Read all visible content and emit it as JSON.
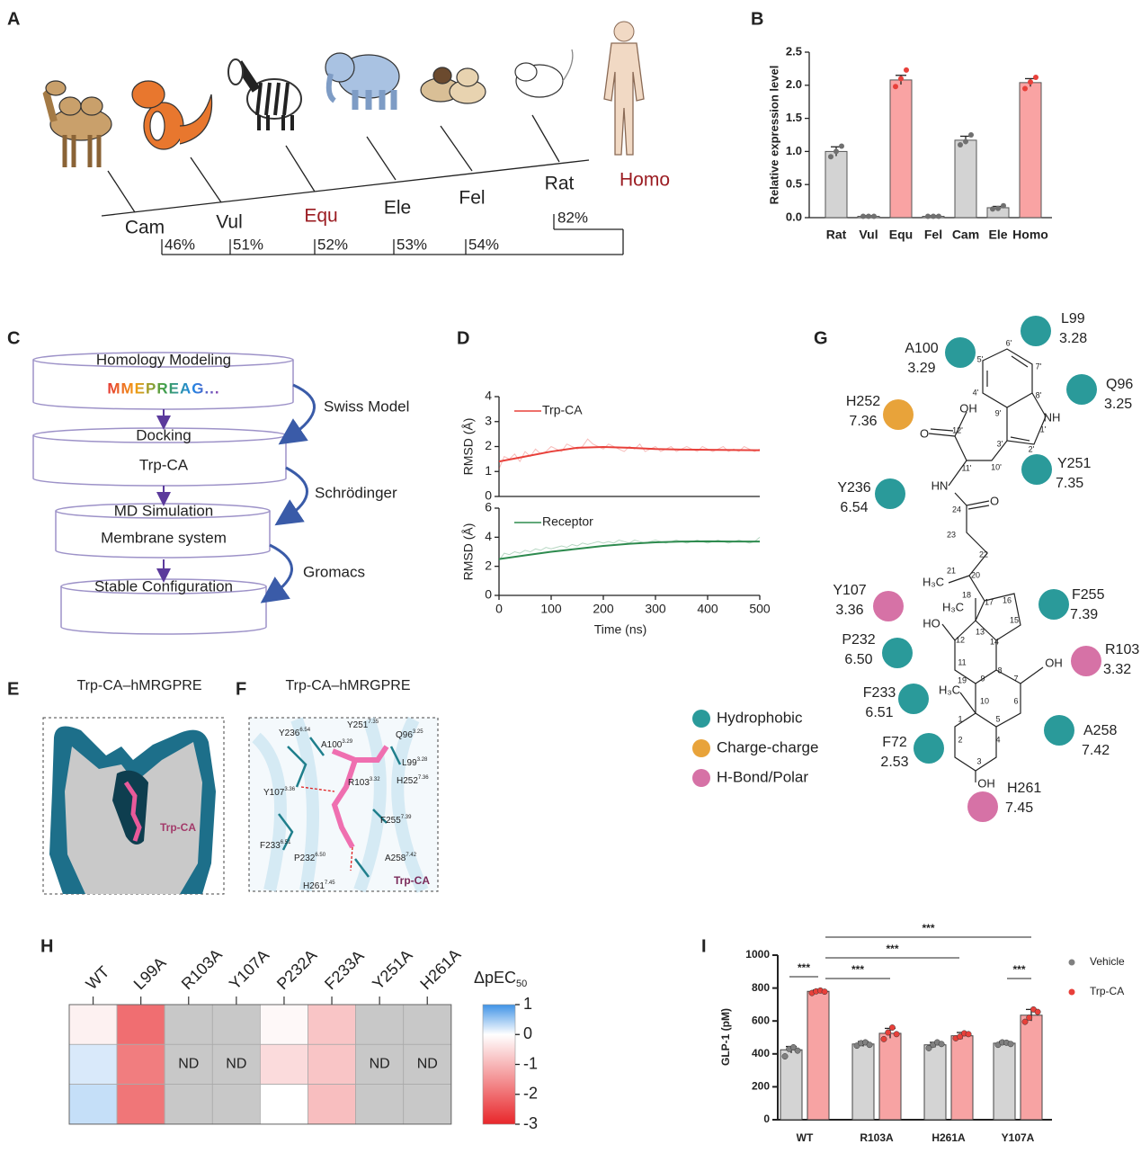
{
  "panel_labels": [
    "A",
    "B",
    "C",
    "D",
    "E",
    "F",
    "G",
    "H",
    "I"
  ],
  "phylogeny": {
    "species": [
      {
        "name": "Cam",
        "color": "#222222"
      },
      {
        "name": "Vul",
        "color": "#222222"
      },
      {
        "name": "Equ",
        "color": "#9b1c22"
      },
      {
        "name": "Ele",
        "color": "#222222"
      },
      {
        "name": "Fel",
        "color": "#222222"
      },
      {
        "name": "Rat",
        "color": "#222222"
      },
      {
        "name": "Homo",
        "color": "#9b1c22"
      }
    ],
    "identity": [
      "46%",
      "51%",
      "52%",
      "53%",
      "54%",
      "82%"
    ]
  },
  "workflow": {
    "steps": [
      {
        "title": "Homology Modeling",
        "detail": "MMEPREAG..."
      },
      {
        "title": "Docking",
        "detail": "Trp-CA"
      },
      {
        "title": "MD Simulation",
        "detail": "Membrane system"
      },
      {
        "title": "Stable Configuration"
      }
    ],
    "tools": [
      "Swiss Model",
      "Schrödinger",
      "Gromacs"
    ]
  },
  "structure_views": {
    "e_title": "Trp-CA–hMRGPRE",
    "e_ligand": "Trp-CA",
    "f_title": "Trp-CA–hMRGPRE",
    "f_ligand": "Trp-CA",
    "f_residues": [
      {
        "name": "Y236",
        "sup": "6.54"
      },
      {
        "name": "Y251",
        "sup": "7.35"
      },
      {
        "name": "A100",
        "sup": "3.29"
      },
      {
        "name": "Q96",
        "sup": "3.25"
      },
      {
        "name": "L99",
        "sup": "3.28"
      },
      {
        "name": "Y107",
        "sup": "3.36"
      },
      {
        "name": "R103",
        "sup": "3.32"
      },
      {
        "name": "H252",
        "sup": "7.36"
      },
      {
        "name": "F255",
        "sup": "7.39"
      },
      {
        "name": "F233",
        "sup": "6.51"
      },
      {
        "name": "P232",
        "sup": "6.50"
      },
      {
        "name": "A258",
        "sup": "7.42"
      },
      {
        "name": "H261",
        "sup": "7.45"
      }
    ]
  },
  "interaction_map": {
    "residues": [
      {
        "name": "L99",
        "number": "3.28",
        "color": "#2a9a9a"
      },
      {
        "name": "A100",
        "number": "3.29",
        "color": "#2a9a9a"
      },
      {
        "name": "Q96",
        "number": "3.25",
        "color": "#2a9a9a"
      },
      {
        "name": "H252",
        "number": "7.36",
        "color": "#e8a33a"
      },
      {
        "name": "Y251",
        "number": "7.35",
        "color": "#2a9a9a"
      },
      {
        "name": "Y236",
        "number": "6.54",
        "color": "#2a9a9a"
      },
      {
        "name": "Y107",
        "number": "3.36",
        "color": "#d672a6"
      },
      {
        "name": "F255",
        "number": "7.39",
        "color": "#2a9a9a"
      },
      {
        "name": "P232",
        "number": "6.50",
        "color": "#2a9a9a"
      },
      {
        "name": "R103",
        "number": "3.32",
        "color": "#d672a6"
      },
      {
        "name": "F233",
        "number": "6.51",
        "color": "#2a9a9a"
      },
      {
        "name": "A258",
        "number": "7.42",
        "color": "#2a9a9a"
      },
      {
        "name": "F72",
        "number": "2.53",
        "color": "#2a9a9a"
      },
      {
        "name": "H261",
        "number": "7.45",
        "color": "#d672a6"
      }
    ],
    "legend": [
      {
        "name": "Hydrophobic",
        "color": "#2a9a9a"
      },
      {
        "name": "Charge-charge",
        "color": "#e8a33a"
      },
      {
        "name": "H-Bond/Polar",
        "color": "#d672a6"
      }
    ],
    "atoms": [
      "OH",
      "NH",
      "O",
      "HN",
      "O",
      "H₃C",
      "H₃C",
      "HO",
      "OH",
      "H₃C",
      "OH"
    ],
    "locants": [
      "1'",
      "2'",
      "3'",
      "4'",
      "5'",
      "6'",
      "7'",
      "8'",
      "9'",
      "10'",
      "11'",
      "12'",
      "24",
      "23",
      "22",
      "21",
      "20",
      "18",
      "17",
      "16",
      "15",
      "13",
      "14",
      "12",
      "11",
      "8",
      "7",
      "9",
      "19",
      "10",
      "5",
      "6",
      "1",
      "2",
      "3",
      "4"
    ]
  },
  "chart_data": [
    {
      "type": "bar",
      "ylabel": "Relative expression level",
      "categories": [
        "Rat",
        "Vul",
        "Equ",
        "Fel",
        "Cam",
        "Ele",
        "Homo"
      ],
      "values": [
        1.0,
        0.02,
        2.08,
        0.02,
        1.17,
        0.15,
        2.04
      ],
      "errors": [
        0.07,
        0.01,
        0.07,
        0.01,
        0.06,
        0.02,
        0.06
      ],
      "points": [
        [
          0.92,
          1.0,
          1.08
        ],
        [
          0.02,
          0.02,
          0.02
        ],
        [
          1.98,
          2.1,
          2.23
        ],
        [
          0.02,
          0.02,
          0.02
        ],
        [
          1.1,
          1.15,
          1.25
        ],
        [
          0.13,
          0.14,
          0.18
        ],
        [
          1.95,
          2.05,
          2.12
        ]
      ],
      "colors": [
        "#d3d3d3",
        "#d3d3d3",
        "#f9a3a3",
        "#d3d3d3",
        "#d3d3d3",
        "#d3d3d3",
        "#f9a3a3"
      ],
      "point_color": "#707070",
      "point_color_highlight": "#e8403a",
      "ylim": [
        0,
        2.5
      ],
      "yticks": [
        {
          "value": 0,
          "label": "0.0"
        },
        {
          "value": 0.5,
          "label": "0.5"
        },
        {
          "value": 1,
          "label": "1.0"
        },
        {
          "value": 1.5,
          "label": "1.5"
        },
        {
          "value": 2,
          "label": "2.0"
        },
        {
          "value": 2.5,
          "label": "2.5"
        }
      ]
    },
    {
      "type": "line",
      "ylabel": "RMSD (Å)",
      "x": [
        0,
        50,
        100,
        150,
        200,
        250,
        300,
        350,
        400,
        450,
        500
      ],
      "series": [
        {
          "name": "Trp-CA",
          "color": "#e8403a",
          "values": [
            1.4,
            1.6,
            1.8,
            1.95,
            1.98,
            1.95,
            1.9,
            1.88,
            1.87,
            1.86,
            1.85
          ],
          "raw_x": [
            0,
            10,
            20,
            30,
            40,
            50,
            60,
            70,
            80,
            90,
            100,
            110,
            120,
            130,
            140,
            150,
            160,
            170,
            180,
            190,
            200,
            210,
            220,
            230,
            240,
            250,
            260,
            270,
            280,
            290,
            300,
            310,
            320,
            330,
            340,
            350,
            360,
            370,
            380,
            390,
            400,
            410,
            420,
            430,
            440,
            450,
            460,
            470,
            480,
            490,
            500
          ],
          "raw_values": [
            1.1,
            1.6,
            1.5,
            1.7,
            1.4,
            1.8,
            1.6,
            1.9,
            1.7,
            1.8,
            2.0,
            1.9,
            1.8,
            2.1,
            2.0,
            1.9,
            2.0,
            2.3,
            2.1,
            2.0,
            1.9,
            2.1,
            2.0,
            1.9,
            1.8,
            2.0,
            1.9,
            2.1,
            1.8,
            1.9,
            2.0,
            1.8,
            1.9,
            2.0,
            1.8,
            1.9,
            2.0,
            1.9,
            1.8,
            2.0,
            1.9,
            1.8,
            1.9,
            2.0,
            1.8,
            1.9,
            1.8,
            2.0,
            1.9,
            1.8,
            1.9
          ]
        }
      ],
      "xlim": [
        0,
        500
      ],
      "ylim": [
        0,
        4
      ],
      "yticks": [
        0,
        1,
        2,
        3,
        4
      ]
    },
    {
      "type": "line",
      "ylabel": "RMSD (Å)",
      "xlabel": "Time (ns)",
      "x": [
        0,
        50,
        100,
        150,
        200,
        250,
        300,
        350,
        400,
        450,
        500
      ],
      "series": [
        {
          "name": "Receptor",
          "color": "#2e8b4f",
          "values": [
            2.5,
            2.75,
            3.0,
            3.2,
            3.4,
            3.55,
            3.65,
            3.7,
            3.72,
            3.7,
            3.7
          ],
          "raw_x": [
            0,
            10,
            20,
            30,
            40,
            50,
            60,
            70,
            80,
            90,
            100,
            110,
            120,
            130,
            140,
            150,
            160,
            170,
            180,
            190,
            200,
            210,
            220,
            230,
            240,
            250,
            260,
            270,
            280,
            290,
            300,
            310,
            320,
            330,
            340,
            350,
            360,
            370,
            380,
            390,
            400,
            410,
            420,
            430,
            440,
            450,
            460,
            470,
            480,
            490,
            500
          ],
          "raw_values": [
            2.4,
            2.9,
            2.8,
            3.0,
            2.9,
            3.1,
            3.0,
            3.2,
            3.1,
            3.3,
            3.2,
            3.3,
            3.4,
            3.3,
            3.5,
            3.4,
            3.6,
            3.5,
            3.6,
            3.7,
            3.6,
            3.7,
            3.6,
            3.8,
            3.7,
            3.6,
            3.8,
            3.7,
            3.6,
            3.7,
            3.8,
            3.7,
            3.6,
            3.7,
            3.8,
            3.7,
            3.6,
            3.7,
            3.8,
            3.7,
            3.6,
            3.7,
            3.8,
            3.7,
            3.6,
            3.7,
            3.8,
            3.7,
            3.6,
            3.7,
            4.0
          ]
        }
      ],
      "xlim": [
        0,
        500
      ],
      "ylim": [
        0,
        6
      ],
      "yticks": [
        0,
        2,
        4,
        6
      ],
      "xticks": [
        0,
        100,
        200,
        300,
        400,
        500
      ]
    },
    {
      "type": "heatmap",
      "categories": [
        "WT",
        "L99A",
        "R103A",
        "Y107A",
        "P232A",
        "F233A",
        "Y251A",
        "H261A"
      ],
      "values": [
        [
          -0.2,
          -2.0,
          null,
          null,
          -0.1,
          -0.8,
          null,
          null
        ],
        [
          0.2,
          -1.8,
          null,
          null,
          -0.5,
          -0.8,
          null,
          null
        ],
        [
          0.3,
          -1.9,
          null,
          null,
          0,
          -0.9,
          null,
          null
        ]
      ],
      "nd_label": "ND",
      "nd_color": "#c8c8c8",
      "colorbar_title": "ΔpEC",
      "colorbar_title_sub": "50",
      "clim": [
        -3,
        1
      ],
      "cmid": 0,
      "cticks": [
        1,
        0,
        -1,
        -2,
        -3
      ],
      "colorscale": [
        "#e8262a",
        "#ffffff",
        "#3f93e6"
      ]
    },
    {
      "type": "grouped_bar",
      "ylabel": "GLP-1 (pM)",
      "categories": [
        "WT",
        "R103A",
        "H261A",
        "Y107A"
      ],
      "series": [
        {
          "name": "Vehicle",
          "color": "#d4d4d4",
          "point_color": "#808080",
          "values": [
            425,
            460,
            455,
            465
          ],
          "errors": [
            20,
            15,
            15,
            10
          ],
          "points": [
            [
              385,
              430,
              440,
              420
            ],
            [
              450,
              465,
              470,
              455
            ],
            [
              435,
              455,
              470,
              460
            ],
            [
              455,
              470,
              468,
              460
            ]
          ]
        },
        {
          "name": "Trp-CA",
          "color": "#f7a3a3",
          "point_color": "#e8403a",
          "values": [
            780,
            525,
            510,
            635
          ],
          "errors": [
            8,
            30,
            20,
            35
          ],
          "points": [
            [
              770,
              780,
              785,
              778
            ],
            [
              490,
              530,
              560,
              520
            ],
            [
              495,
              505,
              525,
              520
            ],
            [
              595,
              620,
              670,
              655
            ]
          ]
        }
      ],
      "ylim": [
        0,
        1000
      ],
      "yticks": [
        0,
        200,
        400,
        600,
        800,
        1000
      ],
      "significance": [
        "***",
        "***",
        "***",
        "***",
        "***"
      ]
    }
  ]
}
